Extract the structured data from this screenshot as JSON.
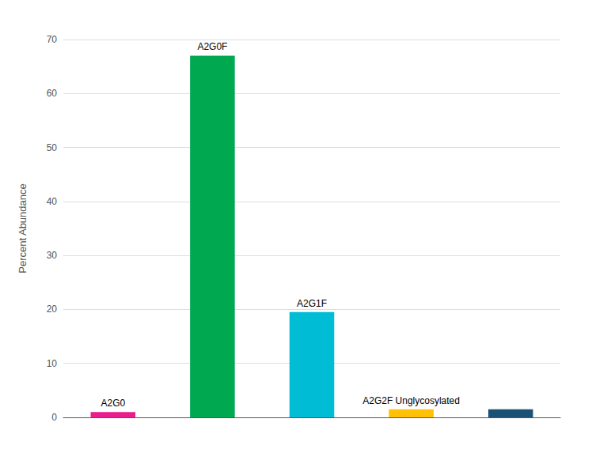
{
  "chart_data": {
    "type": "bar",
    "categories": [
      "A2G0",
      "A2G0F",
      "A2G1F",
      "A2G2F Unglycosylated",
      null
    ],
    "values": [
      1.0,
      67.0,
      19.5,
      1.5,
      1.5
    ],
    "colors": [
      "#E91E8C",
      "#00A850",
      "#00BCD4",
      "#FFC107",
      "#1A5276"
    ],
    "ylabel": "Percent Abundance",
    "ylim": [
      0,
      70
    ],
    "yticks": [
      0,
      10,
      20,
      30,
      40,
      50,
      60,
      70
    ],
    "grid": true,
    "tick_labels": "y"
  }
}
